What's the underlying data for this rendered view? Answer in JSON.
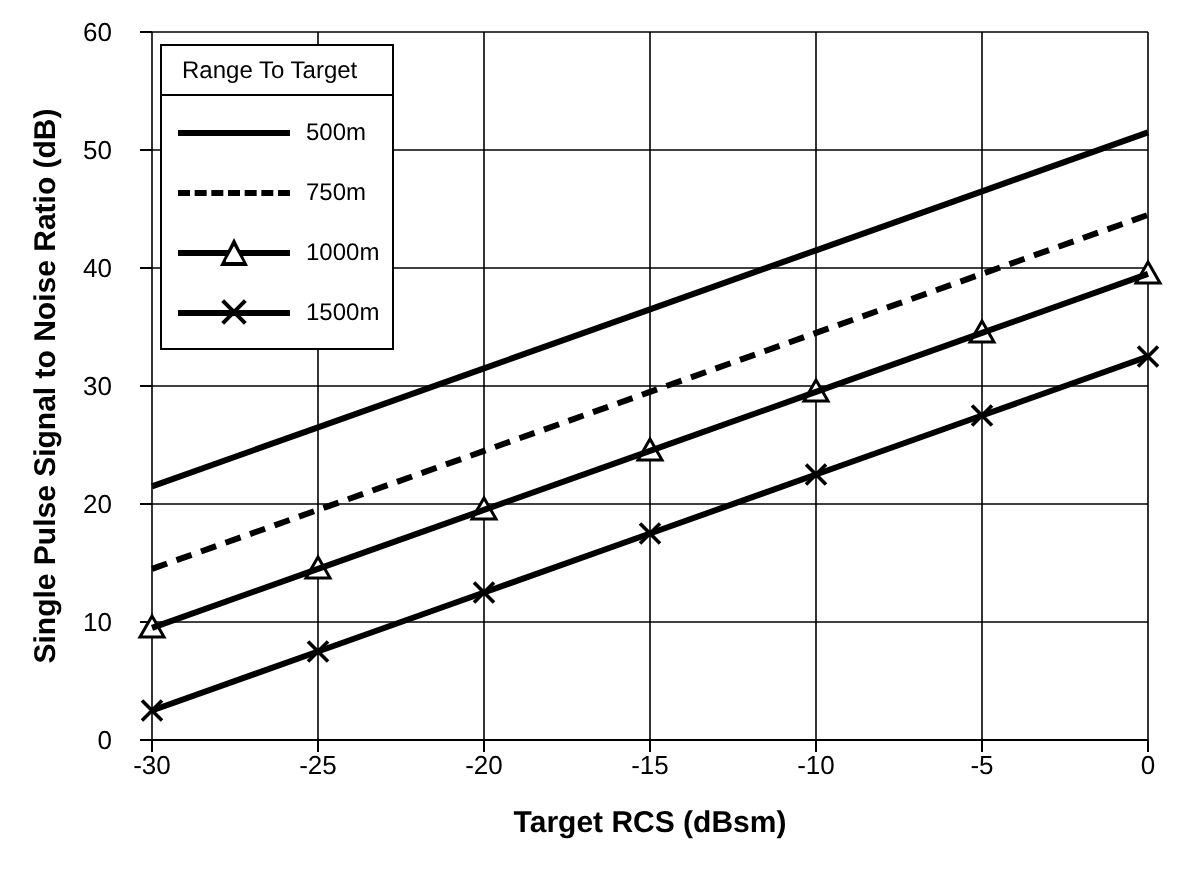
{
  "chart_data": {
    "type": "line",
    "xlabel": "Target RCS (dBsm)",
    "ylabel": "Single Pulse Signal to Noise Ratio (dB)",
    "legend_title": "Range To Target",
    "x": [
      -30,
      -25,
      -20,
      -15,
      -10,
      -5,
      0
    ],
    "series": [
      {
        "name": "500m",
        "color": "#000000",
        "line_style": "solid",
        "marker": "none",
        "values": [
          21.5,
          26.5,
          31.5,
          36.5,
          41.5,
          46.5,
          51.5
        ]
      },
      {
        "name": "750m",
        "color": "#000000",
        "line_style": "dashed",
        "marker": "none",
        "values": [
          14.5,
          19.5,
          24.5,
          29.5,
          34.5,
          39.5,
          44.5
        ]
      },
      {
        "name": "1000m",
        "color": "#000000",
        "line_style": "solid",
        "marker": "triangle",
        "values": [
          9.5,
          14.5,
          19.5,
          24.5,
          29.5,
          34.5,
          39.5
        ]
      },
      {
        "name": "1500m",
        "color": "#000000",
        "line_style": "solid",
        "marker": "cross",
        "values": [
          2.5,
          7.5,
          12.5,
          17.5,
          22.5,
          27.5,
          32.5
        ]
      }
    ],
    "xlim": [
      -30,
      0
    ],
    "xticks": [
      -30,
      -25,
      -20,
      -15,
      -10,
      -5,
      0
    ],
    "ylim": [
      0,
      60
    ],
    "yticks": [
      0,
      10,
      20,
      30,
      40,
      50,
      60
    ],
    "grid": true,
    "legend": "top left"
  }
}
